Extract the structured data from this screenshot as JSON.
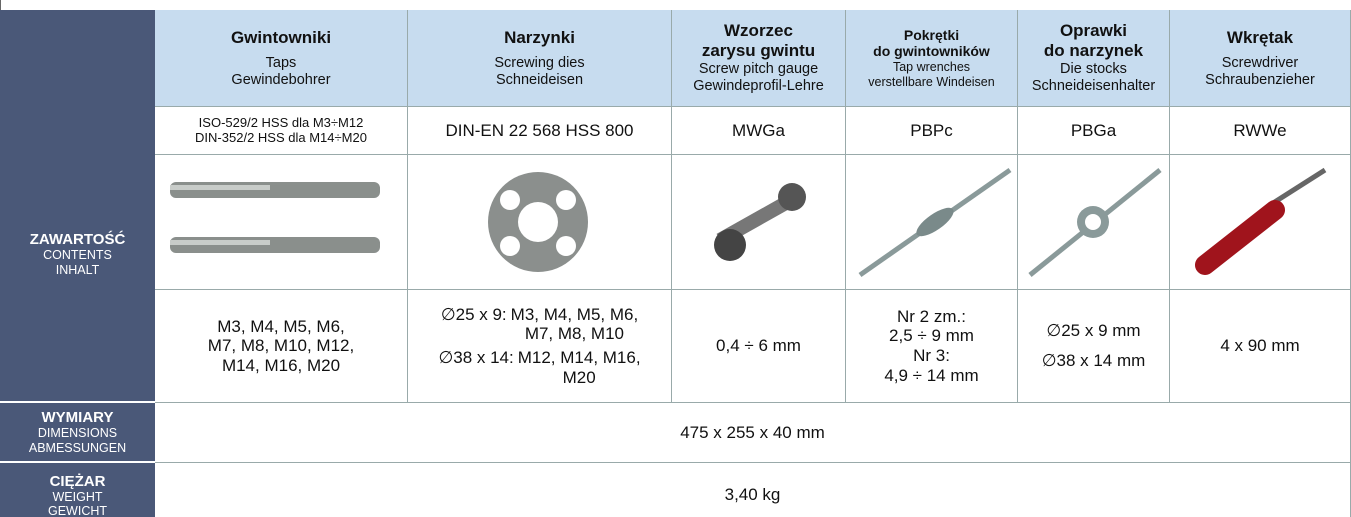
{
  "contents": {
    "label": [
      "ZAWARTOŚĆ",
      "CONTENTS",
      "INHALT"
    ],
    "columns": [
      {
        "title": [
          "Gwintowniki"
        ],
        "subtitle": [
          "Taps",
          "Gewindebohrer"
        ],
        "code": [
          "ISO-529/2 HSS dla M3÷M12",
          "DIN-352/2 HSS dla M14÷M20"
        ],
        "sizes": [
          "M3, M4, M5, M6,",
          "M7, M8, M10, M12,",
          "M14, M16, M20"
        ]
      },
      {
        "title": [
          "Narzynki"
        ],
        "subtitle": [
          "Screwing dies",
          "Schneideisen"
        ],
        "code": [
          "DIN-EN 22 568 HSS 800"
        ],
        "size_groups": [
          {
            "label": "∅25 x 9:",
            "lines": [
              "M3, M4, M5, M6,",
              "M7, M8, M10"
            ]
          },
          {
            "label": "∅38 x 14:",
            "lines": [
              "M12, M14, M16,",
              "M20"
            ]
          }
        ]
      },
      {
        "title": [
          "Wzorzec",
          "zarysu gwintu"
        ],
        "subtitle": [
          "Screw pitch gauge",
          "Gewindeprofil-Lehre"
        ],
        "code": [
          "MWGa"
        ],
        "sizes": [
          "0,4 ÷ 6 mm"
        ]
      },
      {
        "title": [
          "Pokrętki",
          "do gwintowników"
        ],
        "subtitle": [
          "Tap wrenches",
          "verstellbare Windeisen"
        ],
        "code": [
          "PBPc"
        ],
        "sizes": [
          "Nr 2 zm.:",
          "2,5 ÷ 9 mm",
          "Nr 3:",
          "4,9 ÷ 14 mm"
        ]
      },
      {
        "title": [
          "Oprawki",
          "do narzynek"
        ],
        "subtitle": [
          "Die stocks",
          "Schneideisenhalter"
        ],
        "code": [
          "PBGa"
        ],
        "sizes": [
          "∅25 x 9 mm",
          "∅38 x 14 mm"
        ]
      },
      {
        "title": [
          "Wkrętak"
        ],
        "subtitle": [
          "Screwdriver",
          "Schraubenzieher"
        ],
        "code": [
          "RWWe"
        ],
        "sizes": [
          "4 x 90 mm"
        ]
      }
    ]
  },
  "dimensions": {
    "label": [
      "WYMIARY",
      "DIMENSIONS",
      "ABMESSUNGEN"
    ],
    "value": "475 x 255 x 40 mm"
  },
  "weight": {
    "label": [
      "CIĘŻAR",
      "WEIGHT",
      "GEWICHT"
    ],
    "value": "3,40 kg"
  }
}
